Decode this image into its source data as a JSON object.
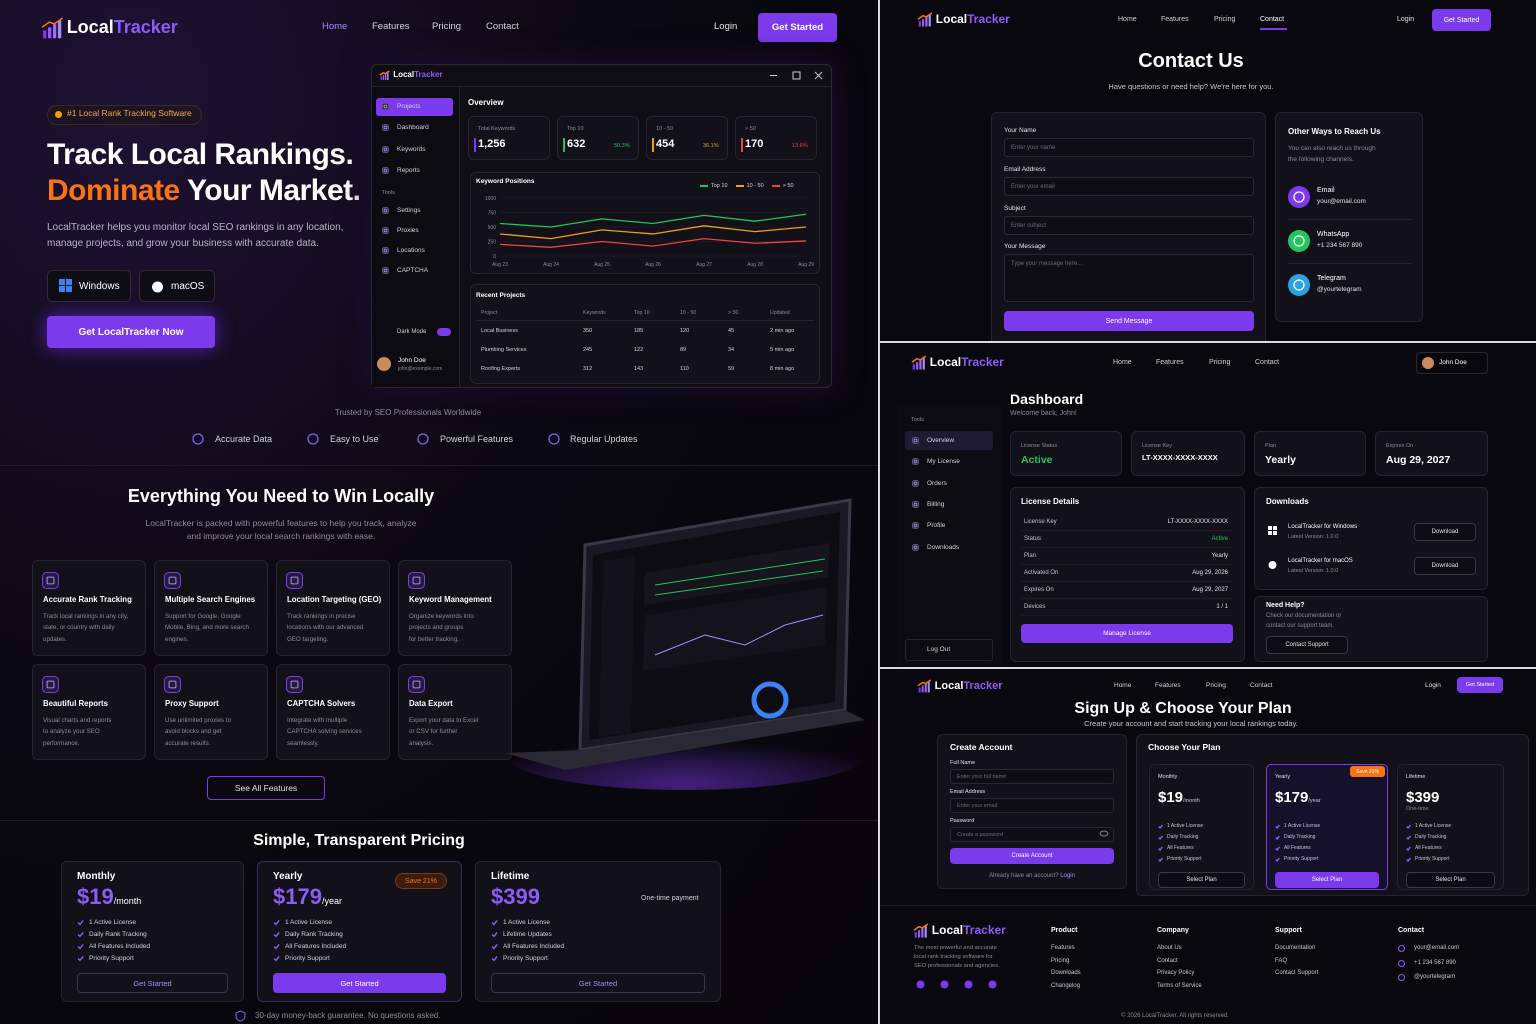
{
  "landing": {
    "nav": {
      "brand": [
        "Local",
        "Tracker"
      ],
      "links": [
        "Home",
        "Features",
        "Pricing",
        "Contact"
      ],
      "login": "Login",
      "cta": "Get Started"
    },
    "hero": {
      "badge": "#1 Local Rank Tracking Software",
      "title_line1": "Track Local Rankings.",
      "title_accent": "Dominate",
      "title_rest": " Your Market.",
      "description": [
        "LocalTracker helps you monitor local SEO rankings in any location,",
        "manage projects, and grow your business with accurate data."
      ],
      "platforms": [
        "Windows",
        "macOS"
      ],
      "cta": "Get LocalTracker Now"
    },
    "app": {
      "brand": [
        "Local",
        "Tracker"
      ],
      "menu": [
        "Projects",
        "Dashboard",
        "Keywords",
        "Reports"
      ],
      "tools_label": "Tools",
      "tools": [
        "Settings",
        "Proxies",
        "Locations",
        "CAPTCHA"
      ],
      "dark_mode": "Dark Mode",
      "user": {
        "name": "John Doe",
        "email": "john@example.com"
      },
      "overview": "Overview",
      "stats": [
        {
          "label": "Total Keywords",
          "value": "1,256"
        },
        {
          "label": "Top 10",
          "value": "632",
          "share": "50.3%"
        },
        {
          "label": "10 - 50",
          "value": "454",
          "share": "36.1%"
        },
        {
          "label": "> 50",
          "value": "170",
          "share": "13.6%"
        }
      ],
      "projects": {
        "title": "Recent Projects",
        "columns": [
          "Project",
          "Keywords",
          "Top 10",
          "10 - 50",
          "> 50",
          "Updated"
        ],
        "rows": [
          [
            "Local Business",
            "350",
            "185",
            "120",
            "45",
            "2 min ago"
          ],
          [
            "Plumbing Services",
            "245",
            "122",
            "89",
            "34",
            "5 min ago"
          ],
          [
            "Roofing Experts",
            "312",
            "143",
            "110",
            "59",
            "8 min ago"
          ]
        ]
      }
    },
    "trusted": {
      "title": "Trusted by SEO Professionals Worldwide",
      "items": [
        "Accurate Data",
        "Easy to Use",
        "Powerful Features",
        "Regular Updates"
      ]
    },
    "features": {
      "title": "Everything You Need to Win Locally",
      "description": [
        "LocalTracker is packed with powerful features to help you track, analyze",
        "and improve your local search rankings with ease."
      ],
      "cards": [
        {
          "title": "Accurate Rank Tracking",
          "description": [
            "Track local rankings in any city,",
            "state, or country with daily",
            "updates."
          ]
        },
        {
          "title": "Multiple Search Engines",
          "description": [
            "Support for Google, Google",
            "Mobile, Bing, and more search",
            "engines."
          ]
        },
        {
          "title": "Location Targeting (GEO)",
          "description": [
            "Track rankings in precise",
            "locations with our advanced",
            "GEO targeting."
          ]
        },
        {
          "title": "Keyword Management",
          "description": [
            "Organize keywords into",
            "projects and groups",
            "for better tracking."
          ]
        },
        {
          "title": "Beautiful Reports",
          "description": [
            "Visual charts and reports",
            "to analyze your SEO",
            "performance."
          ]
        },
        {
          "title": "Proxy Support",
          "description": [
            "Use unlimited proxies to",
            "avoid blocks and get",
            "accurate results."
          ]
        },
        {
          "title": "CAPTCHA Solvers",
          "description": [
            "Integrate with multiple",
            "CAPTCHA solving services",
            "seamlessly."
          ]
        },
        {
          "title": "Data Export",
          "description": [
            "Export your data to Excel",
            "or CSV for further",
            "analysis."
          ]
        }
      ],
      "button": "See All Features"
    },
    "pricing": {
      "title": "Simple, Transparent Pricing",
      "plans": [
        {
          "name": "Monthly",
          "price": "$19",
          "period": "/month",
          "features": [
            "1 Active License",
            "Daily Rank Tracking",
            "All Features Included",
            "Priority Support"
          ],
          "button": "Get Started"
        },
        {
          "name": "Yearly",
          "price": "$179",
          "period": "/year",
          "badge": "Save 21%",
          "features": [
            "1 Active License",
            "Daily Rank Tracking",
            "All Features Included",
            "Priority Support"
          ],
          "button": "Get Started"
        },
        {
          "name": "Lifetime",
          "price": "$399",
          "note": "One-time payment",
          "features": [
            "1 Active License",
            "Lifetime Updates",
            "All Features Included",
            "Priority Support"
          ],
          "button": "Get Started"
        }
      ],
      "guarantee": "30-day money-back guarantee. No questions asked."
    }
  },
  "chart_data": {
    "type": "line",
    "title": "Keyword Positions",
    "categories": [
      "Aug 23",
      "Aug 24",
      "Aug 25",
      "Aug 26",
      "Aug 27",
      "Aug 28",
      "Aug 29"
    ],
    "series": [
      {
        "name": "Top 10",
        "color": "#22c55e",
        "values": [
          560,
          500,
          640,
          560,
          700,
          600,
          720
        ]
      },
      {
        "name": "10 - 50",
        "color": "#f59e0b",
        "values": [
          380,
          300,
          450,
          380,
          520,
          420,
          500
        ]
      },
      {
        "name": "> 50",
        "color": "#ef4444",
        "values": [
          200,
          150,
          250,
          170,
          300,
          220,
          260
        ]
      }
    ],
    "ylim": [
      0,
      1000
    ],
    "yticks": [
      0,
      250,
      500,
      750,
      1000
    ],
    "grid": true
  },
  "contact": {
    "nav": {
      "brand": [
        "Local",
        "Tracker"
      ],
      "links": [
        "Home",
        "Features",
        "Pricing",
        "Contact"
      ],
      "login": "Login",
      "cta": "Get Started"
    },
    "title": "Contact Us",
    "subtitle": "Have questions or need help? We're here for you.",
    "fields": [
      {
        "label": "Your Name",
        "placeholder": "Enter your name"
      },
      {
        "label": "Email Address",
        "placeholder": "Enter your email"
      },
      {
        "label": "Subject",
        "placeholder": "Enter subject"
      },
      {
        "label": "Your Message",
        "placeholder": "Type your message here..."
      }
    ],
    "button": "Send Message",
    "other": {
      "title": "Other Ways to Reach Us",
      "description": [
        "You can also reach us through",
        "the following channels."
      ],
      "channels": [
        {
          "name": "Email",
          "value": "your@email.com"
        },
        {
          "name": "WhatsApp",
          "value": "+1 234 567 890"
        },
        {
          "name": "Telegram",
          "value": "@yourtelegram"
        }
      ]
    }
  },
  "dashboard": {
    "nav": {
      "brand": [
        "Local",
        "Tracker"
      ],
      "links": [
        "Home",
        "Features",
        "Pricing",
        "Contact"
      ],
      "user": "John Doe"
    },
    "title": "Dashboard",
    "welcome": "Welcome back, John!",
    "sidebar": {
      "label": "Tools",
      "items": [
        "Overview",
        "My License",
        "Orders",
        "Billing",
        "Profile",
        "Downloads"
      ],
      "logout": "Log Out"
    },
    "cards": [
      {
        "label": "License Status",
        "value": "Active"
      },
      {
        "label": "License Key",
        "value": "LT-XXXX-XXXX-XXXX"
      },
      {
        "label": "Plan",
        "value": "Yearly"
      },
      {
        "label": "Expires On",
        "value": "Aug 29, 2027"
      }
    ],
    "details": {
      "title": "License Details",
      "rows": [
        [
          "License Key",
          "LT-XXXX-XXXX-XXXX"
        ],
        [
          "Status",
          "Active"
        ],
        [
          "Plan",
          "Yearly"
        ],
        [
          "Activated On",
          "Aug 29, 2026"
        ],
        [
          "Expires On",
          "Aug 29, 2027"
        ],
        [
          "Devices",
          "1 / 1"
        ]
      ],
      "button": "Manage License"
    },
    "downloads": {
      "title": "Downloads",
      "items": [
        {
          "name": "LocalTracker for Windows",
          "version": "Latest Version: 1.0.0",
          "button": "Download"
        },
        {
          "name": "LocalTracker for macOS",
          "version": "Latest Version: 1.0.0",
          "button": "Download"
        }
      ]
    },
    "help": {
      "title": "Need Help?",
      "description": [
        "Check our documentation or",
        "contact our support team."
      ],
      "button": "Contact Support"
    }
  },
  "signup": {
    "nav": {
      "brand": [
        "Local",
        "Tracker"
      ],
      "links": [
        "Home",
        "Features",
        "Pricing",
        "Contact"
      ],
      "login": "Login",
      "cta": "Get Started"
    },
    "title": "Sign Up & Choose Your Plan",
    "subtitle": "Create your account and start tracking your local rankings today.",
    "form": {
      "title": "Create Account",
      "fields": [
        {
          "label": "Full Name",
          "placeholder": "Enter your full name"
        },
        {
          "label": "Email Address",
          "placeholder": "Enter your email"
        },
        {
          "label": "Password",
          "placeholder": "Create a password"
        }
      ],
      "button": "Create Account",
      "login_prompt": "Already have an account? ",
      "login_link": "Login"
    },
    "plans": {
      "title": "Choose Your Plan",
      "items": [
        {
          "name": "Monthly",
          "price": "$19",
          "period": "/month",
          "features": [
            "1 Active License",
            "Daily Tracking",
            "All Features",
            "Priority Support"
          ],
          "button": "Select Plan"
        },
        {
          "name": "Yearly",
          "price": "$179",
          "period": "/year",
          "badge": "Save 21%",
          "features": [
            "1 Active License",
            "Daily Tracking",
            "All Features",
            "Priority Support"
          ],
          "button": "Select Plan"
        },
        {
          "name": "Lifetime",
          "price": "$399",
          "note": "One-time",
          "features": [
            "1 Active License",
            "Daily Tracking",
            "All Features",
            "Priority Support"
          ],
          "button": "Select Plan"
        }
      ]
    }
  },
  "footer": {
    "brand": [
      "Local",
      "Tracker"
    ],
    "description": [
      "The most powerful and accurate",
      "local rank tracking software for",
      "SEO professionals and agencies."
    ],
    "columns": [
      {
        "title": "Product",
        "items": [
          "Features",
          "Pricing",
          "Downloads",
          "Changelog"
        ]
      },
      {
        "title": "Company",
        "items": [
          "About Us",
          "Contact",
          "Privacy Policy",
          "Terms of Service"
        ]
      },
      {
        "title": "Support",
        "items": [
          "Documentation",
          "FAQ",
          "Contact Support"
        ]
      },
      {
        "title": "Contact",
        "items": [
          "your@email.com",
          "+1 234 567 890",
          "@yourtelegram"
        ]
      }
    ],
    "copyright": "© 2026 LocalTracker. All rights reserved."
  }
}
